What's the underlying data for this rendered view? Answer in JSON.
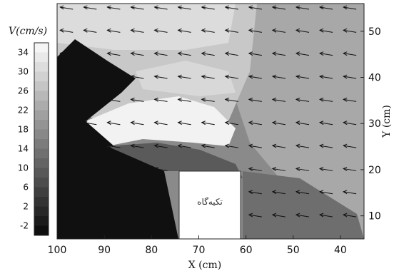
{
  "chart_data": {
    "type": "heatmap",
    "colorbar": {
      "title": "V(cm/s)",
      "ticks": [
        34,
        30,
        26,
        22,
        18,
        14,
        10,
        6,
        2,
        -2
      ],
      "range": [
        -4,
        36
      ],
      "colormap": "grayscale"
    },
    "x_axis": {
      "label": "X (cm)",
      "ticks": [
        100,
        90,
        80,
        70,
        60,
        50,
        40
      ],
      "range": [
        100,
        35
      ],
      "reversed": true
    },
    "y_axis": {
      "label": "Y (cm)",
      "ticks": [
        50,
        40,
        30,
        20,
        10
      ],
      "range": [
        5,
        56
      ],
      "position": "right"
    },
    "obstacle": {
      "label": "تکیه‌گاه",
      "x_range": [
        74,
        61
      ],
      "y_range": [
        5,
        20
      ]
    },
    "vector_field": {
      "description": "velocity vectors pointing leftward (toward larger X)",
      "approx_direction": "left",
      "grid_x": [
        98,
        93,
        88,
        83,
        78,
        73,
        68,
        63,
        58,
        53,
        48,
        43,
        38
      ],
      "grid_y": [
        55,
        50,
        45,
        40,
        35,
        30,
        25,
        20,
        15,
        10,
        5
      ]
    }
  }
}
